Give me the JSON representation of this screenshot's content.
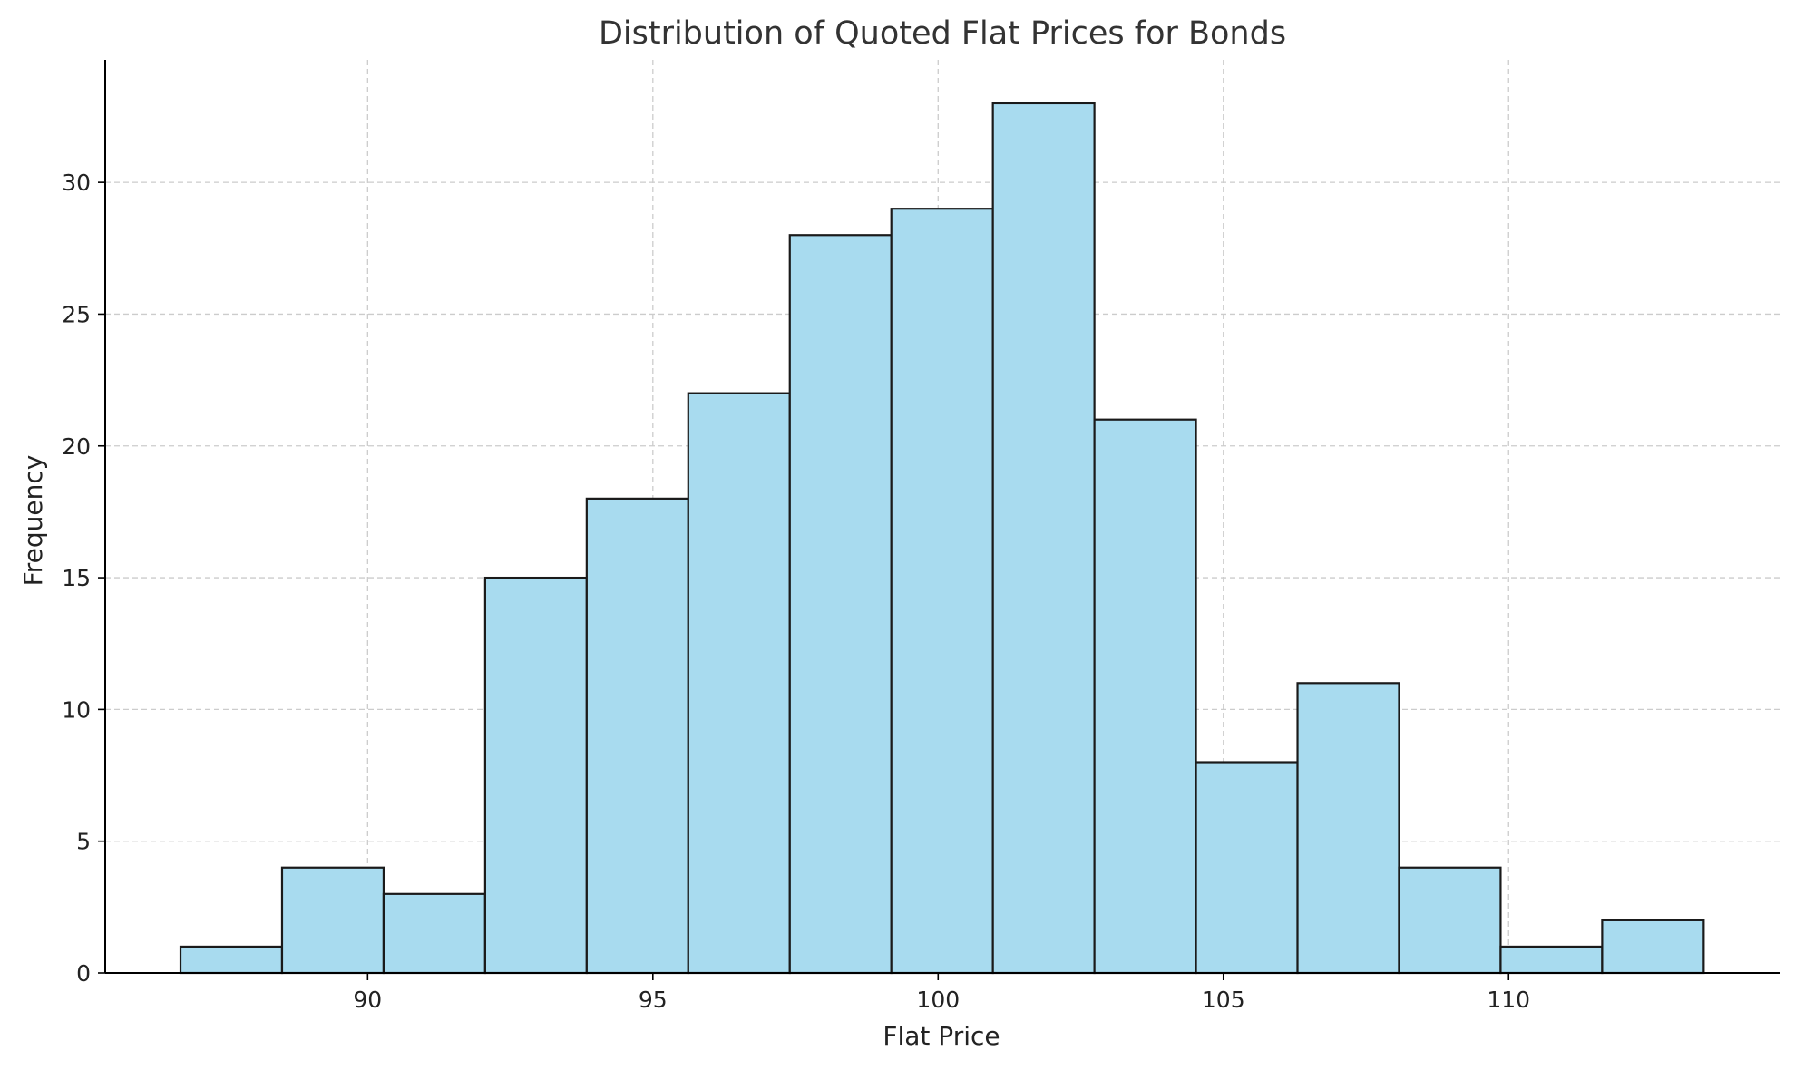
{
  "chart_data": {
    "type": "bar",
    "title": "Distribution of Quoted Flat Prices for Bonds",
    "xlabel": "Flat Price",
    "ylabel": "Frequency",
    "bins": [
      {
        "start": 86.72,
        "end": 88.5,
        "value": 1
      },
      {
        "start": 88.5,
        "end": 90.28,
        "value": 4
      },
      {
        "start": 90.28,
        "end": 92.06,
        "value": 3
      },
      {
        "start": 92.06,
        "end": 93.84,
        "value": 15
      },
      {
        "start": 93.84,
        "end": 95.62,
        "value": 18
      },
      {
        "start": 95.62,
        "end": 97.4,
        "value": 22
      },
      {
        "start": 97.4,
        "end": 99.18,
        "value": 28
      },
      {
        "start": 99.18,
        "end": 100.96,
        "value": 29
      },
      {
        "start": 100.96,
        "end": 102.74,
        "value": 33
      },
      {
        "start": 102.74,
        "end": 104.52,
        "value": 21
      },
      {
        "start": 104.52,
        "end": 106.3,
        "value": 8
      },
      {
        "start": 106.3,
        "end": 108.08,
        "value": 11
      },
      {
        "start": 108.08,
        "end": 109.86,
        "value": 4
      },
      {
        "start": 109.86,
        "end": 111.64,
        "value": 1
      },
      {
        "start": 111.64,
        "end": 113.42,
        "value": 2
      }
    ],
    "xlim": [
      85.4,
      114.75
    ],
    "ylim": [
      0,
      34.65
    ],
    "xticks": [
      90,
      95,
      100,
      105,
      110
    ],
    "yticks": [
      0,
      5,
      10,
      15,
      20,
      25,
      30
    ],
    "grid": true,
    "bar_color": "#a8dbef",
    "edge_color": "#1a1a1a",
    "grid_color": "#cccccc"
  }
}
